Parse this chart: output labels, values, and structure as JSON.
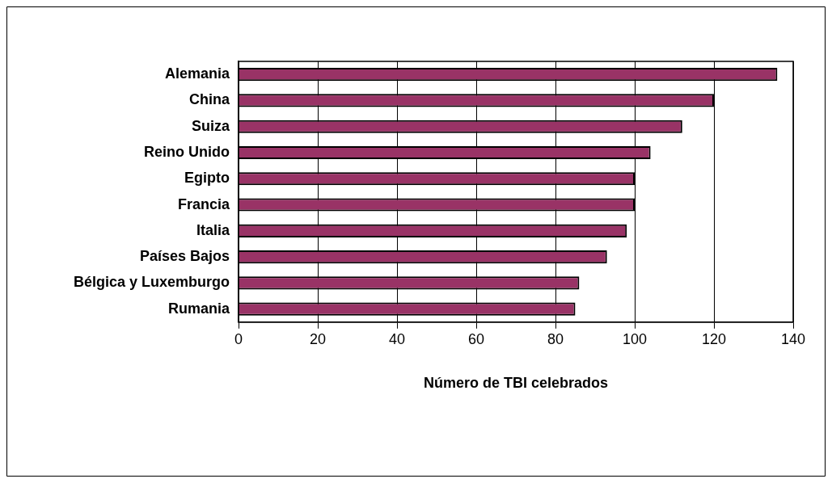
{
  "chart_data": {
    "type": "bar",
    "orientation": "horizontal",
    "xlabel": "Número de TBI celebrados",
    "categories": [
      "Alemania",
      "China",
      "Suiza",
      "Reino Unido",
      "Egipto",
      "Francia",
      "Italia",
      "Países Bajos",
      "Bélgica y Luxemburgo",
      "Rumania"
    ],
    "values": [
      136,
      120,
      112,
      104,
      100,
      100,
      98,
      93,
      86,
      85
    ],
    "color": "#993366",
    "xlim": [
      0,
      140
    ],
    "xticks": [
      0,
      20,
      40,
      60,
      80,
      100,
      120,
      140
    ],
    "grid": "x",
    "legend": false
  }
}
